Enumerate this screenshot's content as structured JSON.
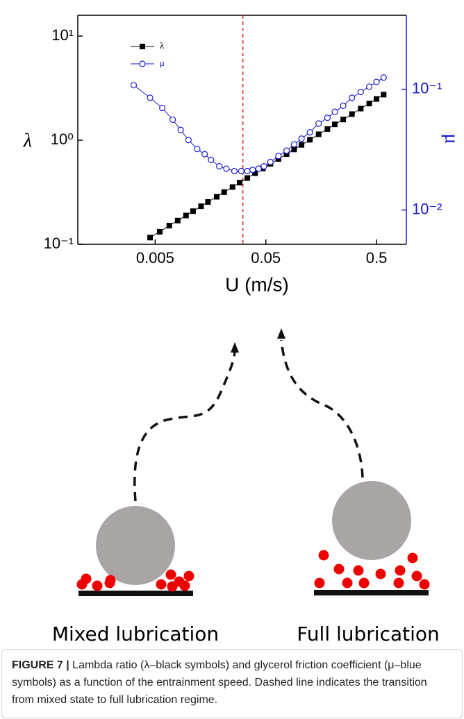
{
  "chart_data": {
    "type": "line",
    "xscale": "log",
    "yscale": "log",
    "y2scale": "log",
    "xlabel": "U (m/s)",
    "ylabel": "λ",
    "y2label": "μ",
    "xlim": [
      0.001,
      0.93
    ],
    "ylim": [
      0.1,
      15.85
    ],
    "y2lim": [
      0.0052,
      0.41
    ],
    "xticks": [
      0.005,
      0.05,
      0.5
    ],
    "yticks": [
      {
        "value": 0.1,
        "label": "10⁻¹"
      },
      {
        "value": 1,
        "label": "10⁰"
      },
      {
        "value": 10,
        "label": "10¹"
      }
    ],
    "y2ticks": [
      {
        "value": 0.01,
        "label": "10⁻²"
      },
      {
        "value": 0.1,
        "label": "10⁻¹"
      }
    ],
    "vline": {
      "value": 0.031,
      "color": "#e02020"
    },
    "legend": "top-left",
    "series": [
      {
        "name": "λ",
        "color": "#000000",
        "marker": "square",
        "x": [
          0.0045,
          0.0055,
          0.0067,
          0.008,
          0.0095,
          0.011,
          0.013,
          0.015,
          0.018,
          0.021,
          0.025,
          0.029,
          0.034,
          0.04,
          0.047,
          0.055,
          0.065,
          0.077,
          0.09,
          0.105,
          0.125,
          0.15,
          0.18,
          0.21,
          0.25,
          0.3,
          0.36,
          0.43,
          0.5,
          0.58
        ],
        "values": [
          0.116,
          0.132,
          0.151,
          0.169,
          0.189,
          0.208,
          0.232,
          0.255,
          0.286,
          0.317,
          0.355,
          0.391,
          0.433,
          0.482,
          0.535,
          0.592,
          0.66,
          0.736,
          0.815,
          0.902,
          1.01,
          1.14,
          1.28,
          1.42,
          1.58,
          1.78,
          2.01,
          2.25,
          2.49,
          2.74
        ]
      },
      {
        "name": "μ",
        "color": "#1a1acd",
        "marker": "circle-open",
        "axis": "y2",
        "x": [
          0.0032,
          0.0045,
          0.0058,
          0.0072,
          0.0085,
          0.01,
          0.012,
          0.014,
          0.016,
          0.019,
          0.022,
          0.026,
          0.03,
          0.034,
          0.038,
          0.043,
          0.048,
          0.055,
          0.065,
          0.077,
          0.09,
          0.105,
          0.125,
          0.15,
          0.18,
          0.21,
          0.25,
          0.3,
          0.36,
          0.43,
          0.5,
          0.58
        ],
        "values": [
          0.108,
          0.085,
          0.07,
          0.056,
          0.046,
          0.038,
          0.032,
          0.029,
          0.026,
          0.023,
          0.022,
          0.021,
          0.021,
          0.021,
          0.0215,
          0.022,
          0.023,
          0.025,
          0.028,
          0.031,
          0.035,
          0.039,
          0.044,
          0.052,
          0.058,
          0.065,
          0.073,
          0.085,
          0.095,
          0.105,
          0.115,
          0.125
        ]
      }
    ]
  },
  "diagram": {
    "labels": [
      "Mixed lubrication",
      "Full lubrication"
    ]
  },
  "caption": {
    "label": "FIGURE 7 |",
    "text": "Lambda ratio (λ–black symbols) and glycerol friction coefficient (μ–blue symbols) as a function of the entrainment speed. Dashed line indicates the transition from mixed state to full lubrication regime."
  }
}
